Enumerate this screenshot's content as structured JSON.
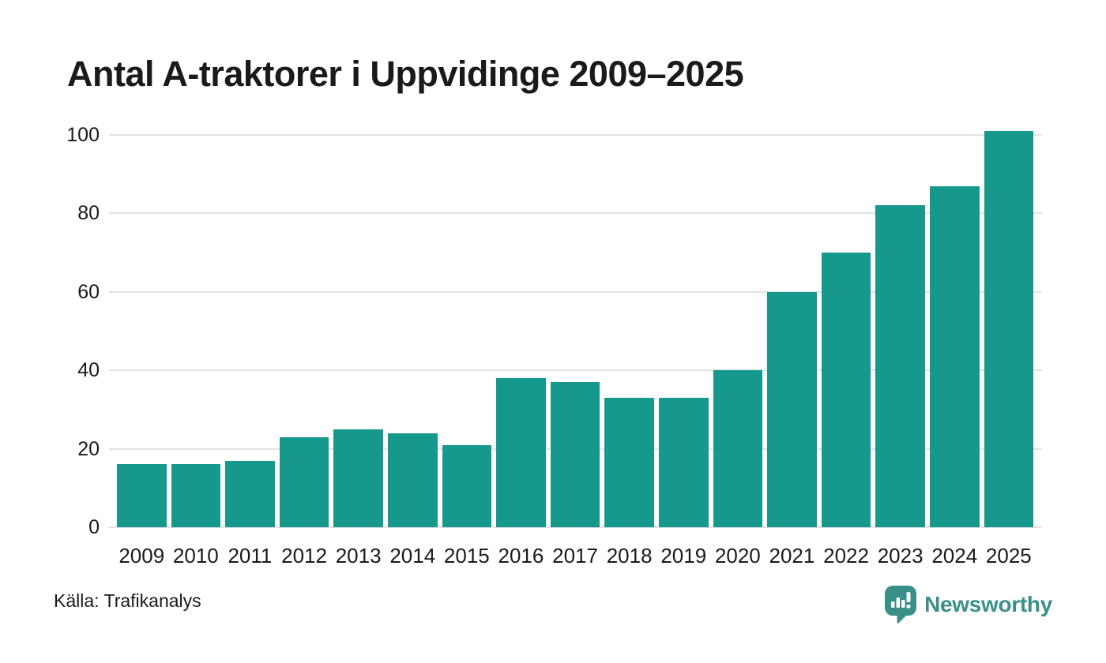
{
  "title": "Antal A-traktorer i Uppvidinge 2009–2025",
  "source": "Källa: Trafikanalys",
  "branding": {
    "name": "Newsworthy",
    "icon": "bar-chart-speech-bubble-icon"
  },
  "colors": {
    "bar": "#16998C",
    "brand": "#3A9088",
    "grid": "#E2E2E2",
    "text": "#1A1A1A",
    "background": "#FFFFFF"
  },
  "chart_data": {
    "type": "bar",
    "title": "Antal A-traktorer i Uppvidinge 2009–2025",
    "categories": [
      "2009",
      "2010",
      "2011",
      "2012",
      "2013",
      "2014",
      "2015",
      "2016",
      "2017",
      "2018",
      "2019",
      "2020",
      "2021",
      "2022",
      "2023",
      "2024",
      "2025"
    ],
    "values": [
      16,
      16,
      17,
      23,
      25,
      24,
      21,
      38,
      37,
      33,
      33,
      40,
      60,
      70,
      82,
      87,
      101
    ],
    "xlabel": "",
    "ylabel": "",
    "ylim": [
      0,
      100
    ],
    "yticks": [
      0,
      20,
      40,
      60,
      80,
      100
    ],
    "grid": true,
    "legend": false,
    "bar_color": "#16998C"
  }
}
